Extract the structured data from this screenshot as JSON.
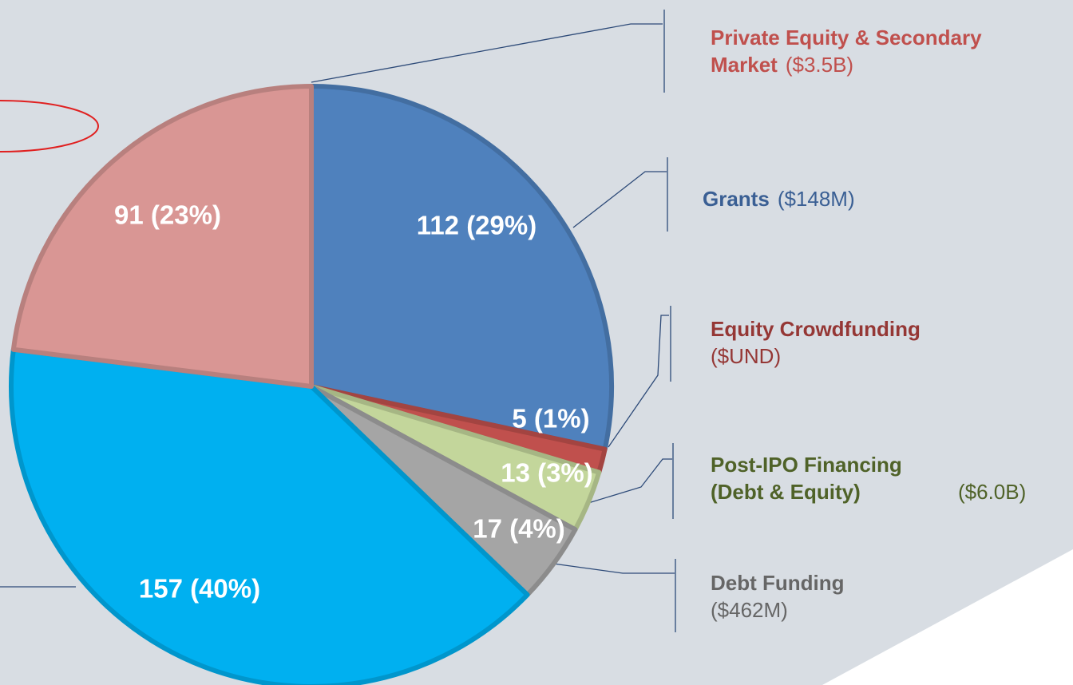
{
  "chart_data": {
    "type": "pie",
    "categories": [
      "Grants",
      "Equity Crowdfunding",
      "Post-IPO Financing (Debt & Equity)",
      "Debt Funding",
      null,
      "Private Equity & Secondary Market"
    ],
    "amounts": [
      "($148M)",
      "($UND)",
      "($6.0B)",
      "($462M)",
      null,
      "($3.5B)"
    ],
    "values": [
      112,
      5,
      13,
      17,
      157,
      91
    ],
    "value_labels": [
      "112 (29%)",
      "5 (1%)",
      "13 (3%)",
      "17 (4%)",
      "157 (40%)",
      "91 (23%)"
    ],
    "colors": [
      "#4f81bd",
      "#c0504d",
      "#c3d69b",
      "#a5a5a5",
      "#00b0f0",
      "#d99694"
    ],
    "label_colors": [
      "#3a5f94",
      "#953735",
      "#4f6228",
      "#666666",
      null,
      "#c0504d"
    ]
  }
}
